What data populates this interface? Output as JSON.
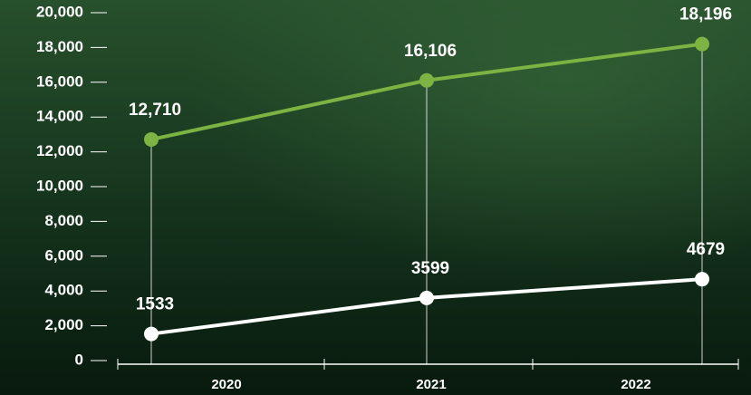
{
  "chart_data": {
    "type": "line",
    "categories": [
      "2020",
      "2021",
      "2022"
    ],
    "series": [
      {
        "color": "#7cb342",
        "values": [
          12710,
          16106,
          18196
        ],
        "value_labels": [
          "12,710",
          "16,106",
          "18,196"
        ]
      },
      {
        "color": "#ffffff",
        "values": [
          1533,
          3599,
          4679
        ]
      }
    ],
    "ylim": [
      0,
      20000
    ],
    "yticks": [
      0,
      {
        "value": 2000,
        "label": "2,000"
      },
      {
        "value": 4000,
        "label": "4,000"
      },
      {
        "value": 6000,
        "label": "6,000"
      },
      {
        "value": 8000,
        "label": "8,000"
      },
      {
        "value": 10000,
        "label": "10,000"
      },
      {
        "value": 12000,
        "label": "12,000"
      },
      {
        "value": 14000,
        "label": "14,000"
      },
      {
        "value": 16000,
        "label": "16,000"
      },
      {
        "value": 18000,
        "label": "18,000"
      },
      {
        "value": 20000,
        "label": "20,000"
      }
    ],
    "grid": false
  }
}
